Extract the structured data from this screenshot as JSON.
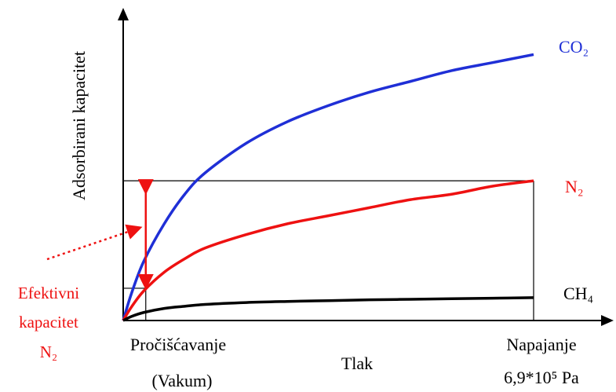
{
  "chart_data": {
    "type": "line",
    "title": "",
    "xlabel": "Tlak",
    "ylabel": "Adsorbirani kapacitet",
    "xlim": [
      0,
      1
    ],
    "ylim": [
      0,
      1
    ],
    "x_ticks": [
      {
        "x": 0.055,
        "lines": [
          "Pročišćavanje",
          "(Vakum)"
        ]
      },
      {
        "x": 1.0,
        "lines": [
          "Napajanje",
          "6,9*10⁵ Pa"
        ]
      }
    ],
    "series": [
      {
        "name": "CO₂",
        "color": "#1f2fd6",
        "points": [
          [
            0,
            0
          ],
          [
            0.02,
            0.1
          ],
          [
            0.05,
            0.22
          ],
          [
            0.1,
            0.36
          ],
          [
            0.15,
            0.47
          ],
          [
            0.2,
            0.55
          ],
          [
            0.3,
            0.66
          ],
          [
            0.4,
            0.74
          ],
          [
            0.5,
            0.8
          ],
          [
            0.6,
            0.85
          ],
          [
            0.7,
            0.89
          ],
          [
            0.8,
            0.93
          ],
          [
            0.9,
            0.96
          ],
          [
            1.0,
            0.99
          ]
        ]
      },
      {
        "name": "N₂",
        "color": "#ee1111",
        "points": [
          [
            0,
            0
          ],
          [
            0.02,
            0.05
          ],
          [
            0.05,
            0.11
          ],
          [
            0.1,
            0.18
          ],
          [
            0.15,
            0.23
          ],
          [
            0.2,
            0.27
          ],
          [
            0.3,
            0.32
          ],
          [
            0.4,
            0.36
          ],
          [
            0.5,
            0.39
          ],
          [
            0.6,
            0.42
          ],
          [
            0.7,
            0.45
          ],
          [
            0.8,
            0.47
          ],
          [
            0.9,
            0.5
          ],
          [
            1.0,
            0.52
          ]
        ]
      },
      {
        "name": "CH₄",
        "color": "#000000",
        "points": [
          [
            0,
            0
          ],
          [
            0.02,
            0.015
          ],
          [
            0.05,
            0.03
          ],
          [
            0.1,
            0.045
          ],
          [
            0.15,
            0.053
          ],
          [
            0.2,
            0.06
          ],
          [
            0.3,
            0.067
          ],
          [
            0.4,
            0.071
          ],
          [
            0.5,
            0.074
          ],
          [
            0.6,
            0.077
          ],
          [
            0.7,
            0.079
          ],
          [
            0.8,
            0.081
          ],
          [
            0.9,
            0.083
          ],
          [
            1.0,
            0.085
          ]
        ]
      }
    ],
    "reference_box": {
      "x_low": 0.055,
      "x_high": 1.0,
      "y_low": 0.12,
      "y_high": 0.52
    },
    "effective_capacity": {
      "x": 0.055,
      "y_from": 0.12,
      "y_to": 0.52,
      "color": "#ee1111"
    },
    "annotation": {
      "lines": [
        "Efektivni",
        "kapacitet",
        "N₂"
      ],
      "color": "#ee1111"
    },
    "grid": false,
    "legend": "inline-right"
  }
}
